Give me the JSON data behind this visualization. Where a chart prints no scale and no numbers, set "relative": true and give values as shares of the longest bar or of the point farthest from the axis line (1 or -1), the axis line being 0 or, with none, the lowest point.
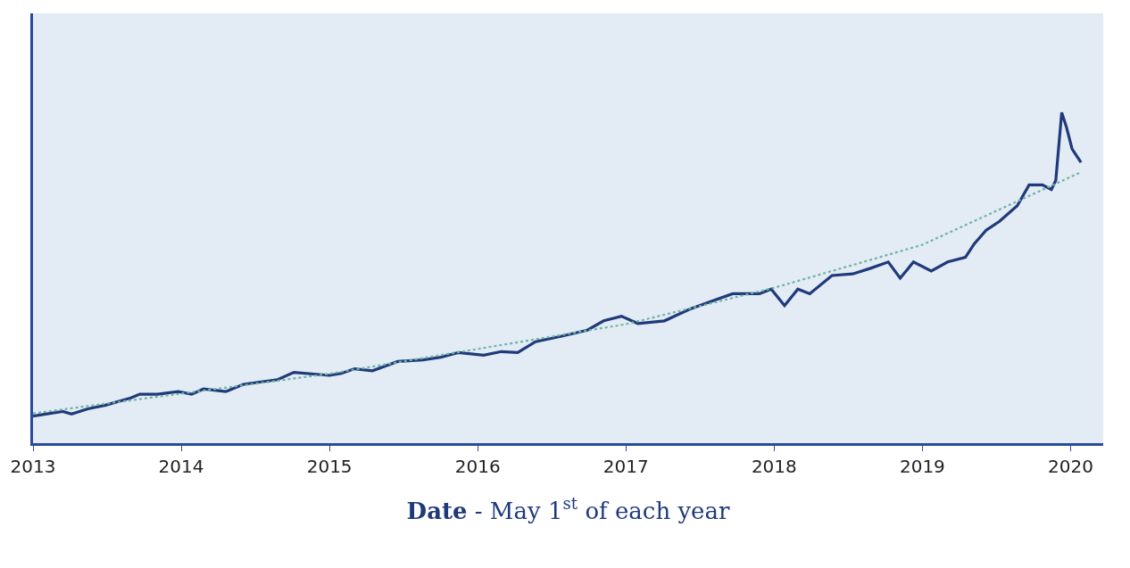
{
  "chart_data": {
    "type": "line",
    "relative": true,
    "xlabel": "Date - May 1$^{st}$ of each year",
    "xlim": [
      2013,
      2020.22
    ],
    "xticks": [
      2013,
      2014,
      2015,
      2016,
      2017,
      2018,
      2019,
      2020
    ],
    "tick_labels": "x",
    "grid": false,
    "legend": false,
    "marker": "none",
    "series": [
      {
        "color": "#1f3a7a",
        "line_style": "solid",
        "x": [
          2013.0,
          2013.2,
          2013.26,
          2013.37,
          2013.49,
          2013.66,
          2013.72,
          2013.84,
          2013.98,
          2014.07,
          2014.15,
          2014.3,
          2014.42,
          2014.65,
          2014.76,
          2015.0,
          2015.08,
          2015.17,
          2015.29,
          2015.46,
          2015.63,
          2015.75,
          2015.87,
          2016.04,
          2016.16,
          2016.27,
          2016.39,
          2016.56,
          2016.74,
          2016.85,
          2016.97,
          2017.08,
          2017.26,
          2017.43,
          2017.55,
          2017.72,
          2017.9,
          2017.98,
          2018.07,
          2018.16,
          2018.24,
          2018.39,
          2018.53,
          2018.65,
          2018.77,
          2018.85,
          2018.94,
          2019.06,
          2019.17,
          2019.29,
          2019.35,
          2019.43,
          2019.52,
          2019.64,
          2019.72,
          2019.81,
          2019.87,
          2019.9,
          2019.94,
          2019.97,
          2020.01,
          2020.07
        ],
        "values": [
          0.082,
          0.096,
          0.088,
          0.104,
          0.115,
          0.137,
          0.148,
          0.148,
          0.156,
          0.148,
          0.164,
          0.156,
          0.178,
          0.192,
          0.214,
          0.205,
          0.211,
          0.225,
          0.219,
          0.247,
          0.252,
          0.26,
          0.274,
          0.266,
          0.277,
          0.274,
          0.307,
          0.323,
          0.342,
          0.37,
          0.384,
          0.362,
          0.37,
          0.405,
          0.425,
          0.452,
          0.452,
          0.466,
          0.416,
          0.466,
          0.452,
          0.507,
          0.512,
          0.529,
          0.548,
          0.499,
          0.548,
          0.521,
          0.548,
          0.562,
          0.603,
          0.644,
          0.671,
          0.718,
          0.781,
          0.781,
          0.767,
          0.795,
          1.0,
          0.959,
          0.89,
          0.849
        ]
      },
      {
        "color": "#6fb3a3",
        "line_style": "dotted",
        "x": [
          2013.0,
          2015.0,
          2017.0,
          2018.0,
          2019.0,
          2020.07
        ],
        "values": [
          0.09,
          0.21,
          0.36,
          0.47,
          0.6,
          0.82
        ]
      }
    ]
  }
}
